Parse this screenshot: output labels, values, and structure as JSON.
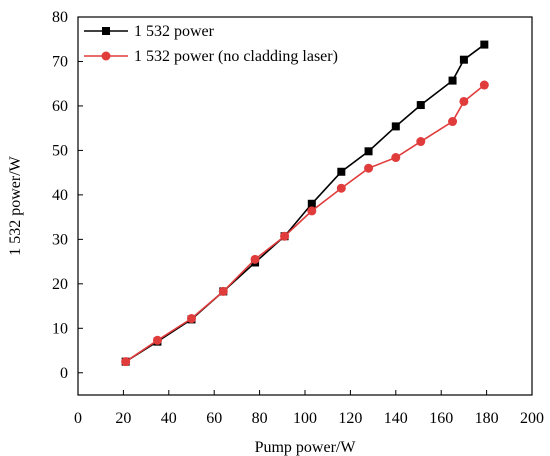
{
  "chart_data": {
    "type": "line",
    "xlabel": "Pump power/W",
    "ylabel": "1 532 power/W",
    "xlim": [
      0,
      200
    ],
    "ylim": [
      -5,
      80
    ],
    "xticks": [
      0,
      20,
      40,
      60,
      80,
      100,
      120,
      140,
      160,
      180,
      200
    ],
    "yticks": [
      0,
      10,
      20,
      30,
      40,
      50,
      60,
      70,
      80
    ],
    "grid": false,
    "legend_position": "top-left",
    "series": [
      {
        "name": "1 532 power",
        "color": "#000000",
        "marker": "square",
        "x": [
          21,
          35,
          50,
          64,
          78,
          91,
          103,
          116,
          128,
          140,
          151,
          165,
          170,
          179
        ],
        "y": [
          2.5,
          7.0,
          12.0,
          18.3,
          24.8,
          30.7,
          38.0,
          45.2,
          49.8,
          55.4,
          60.2,
          65.7,
          70.4,
          73.8
        ]
      },
      {
        "name": "1 532 power (no cladding laser)",
        "color": "#e03c3c",
        "marker": "circle",
        "x": [
          21,
          35,
          50,
          64,
          78,
          91,
          103,
          116,
          128,
          140,
          151,
          165,
          170,
          179
        ],
        "y": [
          2.5,
          7.3,
          12.2,
          18.3,
          25.5,
          30.7,
          36.4,
          41.5,
          46.0,
          48.4,
          52.0,
          56.5,
          61.0,
          64.7
        ]
      }
    ]
  }
}
